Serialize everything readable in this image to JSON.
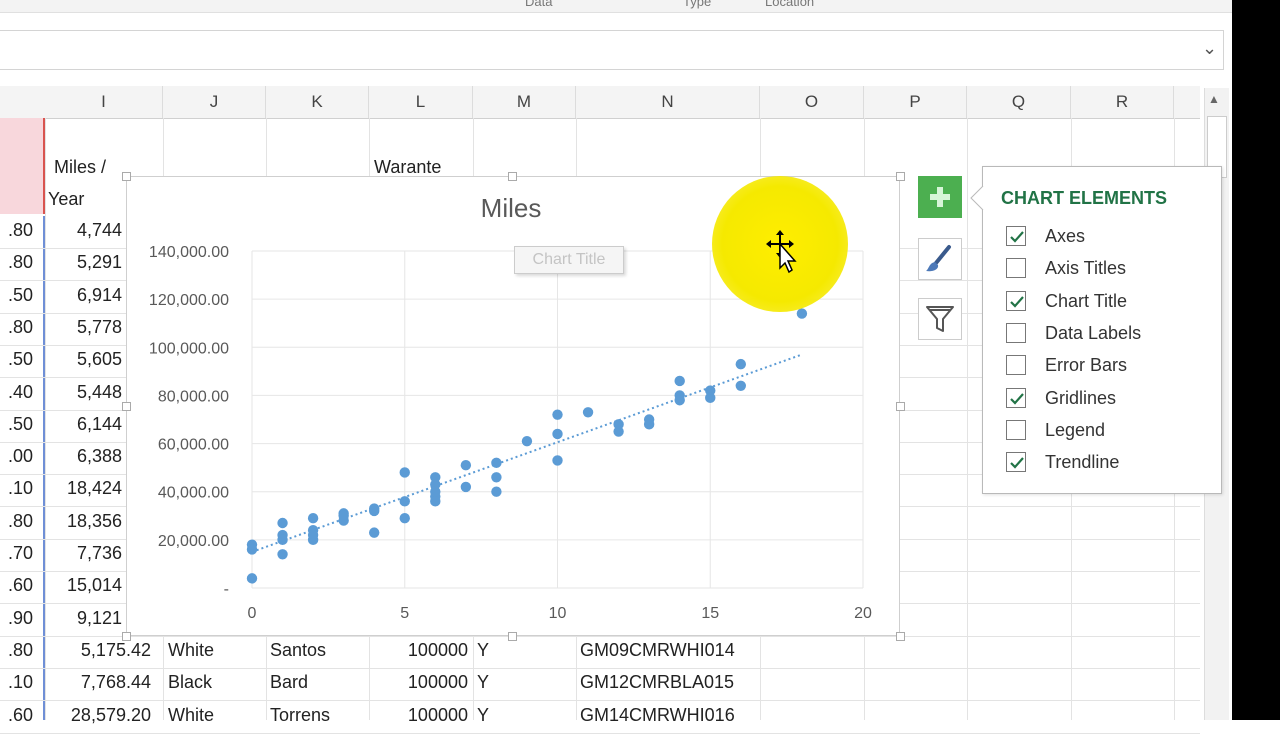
{
  "ribbon": {
    "labels": [
      "Data",
      "Type",
      "Location"
    ]
  },
  "formula_bar": {
    "chevron": "⌄"
  },
  "columns": [
    "I",
    "J",
    "K",
    "L",
    "M",
    "N",
    "O",
    "P",
    "Q",
    "R"
  ],
  "header_cells": {
    "miles_per": "Miles /",
    "year": "Year",
    "warante": "Warante"
  },
  "rows": [
    {
      "h": ".80",
      "i": "4,744"
    },
    {
      "h": ".80",
      "i": "5,291"
    },
    {
      "h": ".50",
      "i": "6,914"
    },
    {
      "h": ".80",
      "i": "5,778"
    },
    {
      "h": ".50",
      "i": "5,605"
    },
    {
      "h": ".40",
      "i": "5,448"
    },
    {
      "h": ".50",
      "i": "6,144"
    },
    {
      "h": ".00",
      "i": "6,388"
    },
    {
      "h": ".10",
      "i": "18,424"
    },
    {
      "h": ".80",
      "i": "18,356"
    },
    {
      "h": ".70",
      "i": "7,736"
    },
    {
      "h": ".60",
      "i": "15,014"
    },
    {
      "h": ".90",
      "i": "9,121"
    },
    {
      "h": ".80",
      "i": "5,175.42",
      "j": "White",
      "k": "Santos",
      "l": "100000",
      "m": "Y",
      "n": "GM09CMRWHI014"
    },
    {
      "h": ".10",
      "i": "7,768.44",
      "j": "Black",
      "k": "Bard",
      "l": "100000",
      "m": "Y",
      "n": "GM12CMRBLA015"
    },
    {
      "h": ".60",
      "i": "28,579.20",
      "j": "White",
      "k": "Torrens",
      "l": "100000",
      "m": "Y",
      "n": "GM14CMRWHI016"
    }
  ],
  "chart": {
    "ghost_title": "Chart Title",
    "accent_color": "#5b9bd5"
  },
  "chart_data": {
    "type": "scatter",
    "title": "Miles",
    "xlabel": "",
    "ylabel": "",
    "xlim": [
      0,
      20
    ],
    "ylim": [
      0,
      140000
    ],
    "x_ticks": [
      "0",
      "5",
      "10",
      "15",
      "20"
    ],
    "y_ticks": [
      "-",
      "20,000.00",
      "40,000.00",
      "60,000.00",
      "80,000.00",
      "100,000.00",
      "120,000.00",
      "140,000.00"
    ],
    "grid": true,
    "trendline": {
      "type": "linear",
      "from": [
        0,
        15000
      ],
      "to": [
        18,
        97000
      ]
    },
    "series": [
      {
        "points": [
          [
            0,
            16000
          ],
          [
            0,
            18000
          ],
          [
            0,
            4000
          ],
          [
            1,
            22000
          ],
          [
            1,
            27000
          ],
          [
            1,
            14000
          ],
          [
            1,
            20000
          ],
          [
            2,
            29000
          ],
          [
            2,
            24000
          ],
          [
            2,
            20000
          ],
          [
            2,
            22000
          ],
          [
            3,
            28000
          ],
          [
            3,
            31000
          ],
          [
            3,
            30000
          ],
          [
            4,
            32000
          ],
          [
            4,
            23000
          ],
          [
            4,
            33000
          ],
          [
            5,
            48000
          ],
          [
            5,
            36000
          ],
          [
            5,
            29000
          ],
          [
            6,
            43000
          ],
          [
            6,
            46000
          ],
          [
            6,
            38000
          ],
          [
            6,
            40000
          ],
          [
            6,
            36000
          ],
          [
            7,
            51000
          ],
          [
            7,
            42000
          ],
          [
            8,
            52000
          ],
          [
            8,
            46000
          ],
          [
            8,
            40000
          ],
          [
            9,
            61000
          ],
          [
            10,
            72000
          ],
          [
            10,
            64000
          ],
          [
            10,
            53000
          ],
          [
            11,
            73000
          ],
          [
            12,
            68000
          ],
          [
            12,
            65000
          ],
          [
            13,
            70000
          ],
          [
            13,
            68000
          ],
          [
            14,
            86000
          ],
          [
            14,
            80000
          ],
          [
            14,
            78000
          ],
          [
            15,
            82000
          ],
          [
            15,
            79000
          ],
          [
            16,
            93000
          ],
          [
            16,
            84000
          ],
          [
            18,
            114000
          ]
        ]
      }
    ]
  },
  "side_buttons": {
    "add": "add-chart-element",
    "style": "chart-styles",
    "filter": "chart-filters"
  },
  "chart_elements": {
    "title": "CHART ELEMENTS",
    "items": [
      {
        "label": "Axes",
        "checked": true
      },
      {
        "label": "Axis Titles",
        "checked": false
      },
      {
        "label": "Chart Title",
        "checked": true
      },
      {
        "label": "Data Labels",
        "checked": false
      },
      {
        "label": "Error Bars",
        "checked": false
      },
      {
        "label": "Gridlines",
        "checked": true
      },
      {
        "label": "Legend",
        "checked": false
      },
      {
        "label": "Trendline",
        "checked": true
      }
    ]
  }
}
